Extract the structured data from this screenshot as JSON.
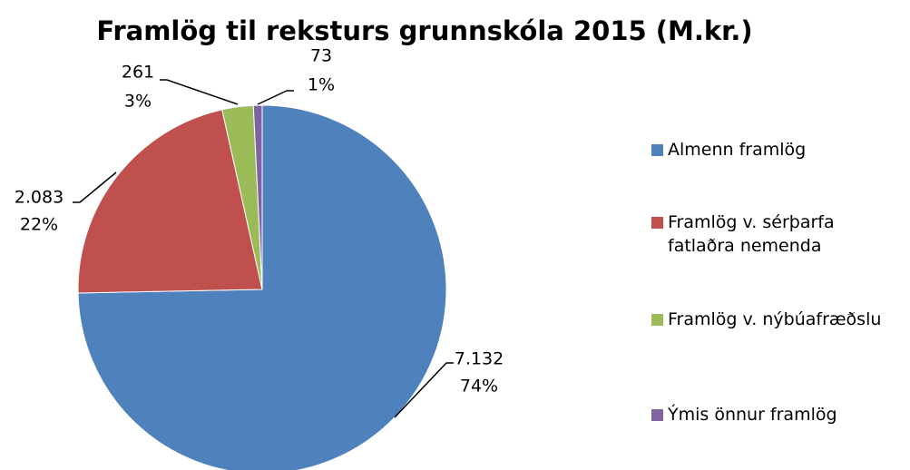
{
  "chart_data": {
    "type": "pie",
    "title": "Framlög til reksturs grunnskóla 2015 (M.kr.)",
    "categories": [
      "Almenn framlög",
      "Framlög v. sérþarfa fatlaðra nemenda",
      "Framlög v. nýbúafræðslu",
      "Ýmis önnur framlög"
    ],
    "values": [
      7132,
      2083,
      261,
      73
    ],
    "value_labels": [
      "7.132",
      "2.083",
      "261",
      "73"
    ],
    "percent_labels": [
      "74%",
      "22%",
      "3%",
      "1%"
    ],
    "colors": [
      "#4f81bd",
      "#c0504d",
      "#9bbb59",
      "#8064a2"
    ],
    "legend": "right"
  }
}
